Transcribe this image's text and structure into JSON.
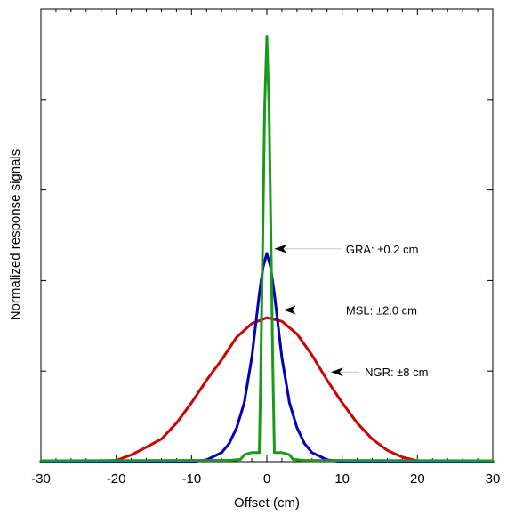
{
  "chart_data": {
    "type": "line",
    "xlabel": "Offset (cm)",
    "ylabel": "Normalized response signals",
    "xlim": [
      -30,
      30
    ],
    "ylim": [
      0,
      1.0
    ],
    "x_ticks": [
      -30,
      -20,
      -10,
      0,
      10,
      20,
      30
    ],
    "x_tick_labels": [
      "-30",
      "-20",
      "-10",
      "0",
      "10",
      "20",
      "30"
    ],
    "y_ticks": [
      0.2,
      0.4,
      0.6,
      0.8
    ],
    "grid": false,
    "series": [
      {
        "id": "ngr",
        "color": "#cc0000",
        "x": [
          -30,
          -25,
          -20,
          -18,
          -16,
          -14,
          -12,
          -10,
          -8,
          -6,
          -4,
          -2,
          0,
          2,
          4,
          6,
          8,
          10,
          12,
          14,
          16,
          18,
          20,
          25,
          30
        ],
        "values": [
          0.0,
          0.0,
          0.003,
          0.015,
          0.032,
          0.05,
          0.085,
          0.13,
          0.18,
          0.225,
          0.275,
          0.305,
          0.318,
          0.31,
          0.282,
          0.235,
          0.18,
          0.13,
          0.085,
          0.05,
          0.025,
          0.01,
          0.002,
          0.0,
          0.0
        ]
      },
      {
        "id": "msl",
        "color": "#0000bb",
        "x": [
          -30,
          -10,
          -8,
          -6,
          -5,
          -4,
          -3,
          -2,
          -1.5,
          -1,
          -0.5,
          0,
          0.5,
          1,
          1.5,
          2,
          3,
          4,
          5,
          6,
          8,
          10,
          30
        ],
        "values": [
          0.0,
          0.0,
          0.004,
          0.02,
          0.04,
          0.075,
          0.13,
          0.23,
          0.3,
          0.37,
          0.43,
          0.46,
          0.43,
          0.37,
          0.3,
          0.23,
          0.13,
          0.075,
          0.04,
          0.02,
          0.004,
          0.0,
          0.0
        ]
      },
      {
        "id": "gra",
        "color": "#1a9a1a",
        "x": [
          -30,
          -5,
          -3.5,
          -3,
          -2.5,
          -2,
          -1.5,
          -1,
          -0.8,
          -0.5,
          -0.3,
          0,
          0.3,
          0.5,
          0.8,
          1,
          1.5,
          2,
          2.5,
          3,
          3.5,
          5,
          30
        ],
        "values": [
          0.002,
          0.003,
          0.005,
          0.015,
          0.018,
          0.02,
          0.02,
          0.02,
          0.2,
          0.55,
          0.78,
          0.94,
          0.78,
          0.55,
          0.2,
          0.02,
          0.02,
          0.02,
          0.018,
          0.015,
          0.005,
          0.003,
          0.002
        ]
      }
    ],
    "annotations": [
      {
        "text": "GRA: ±0.2 cm",
        "series": "gra",
        "target": [
          1,
          0.47
        ],
        "text_at": [
          10.5,
          0.47
        ]
      },
      {
        "text": "MSL: ±2.0 cm",
        "series": "msl",
        "target": [
          2.2,
          0.335
        ],
        "text_at": [
          10.5,
          0.335
        ]
      },
      {
        "text": "NGR: ±8 cm",
        "series": "ngr",
        "target": [
          8.5,
          0.198
        ],
        "text_at": [
          13,
          0.198
        ]
      }
    ]
  }
}
